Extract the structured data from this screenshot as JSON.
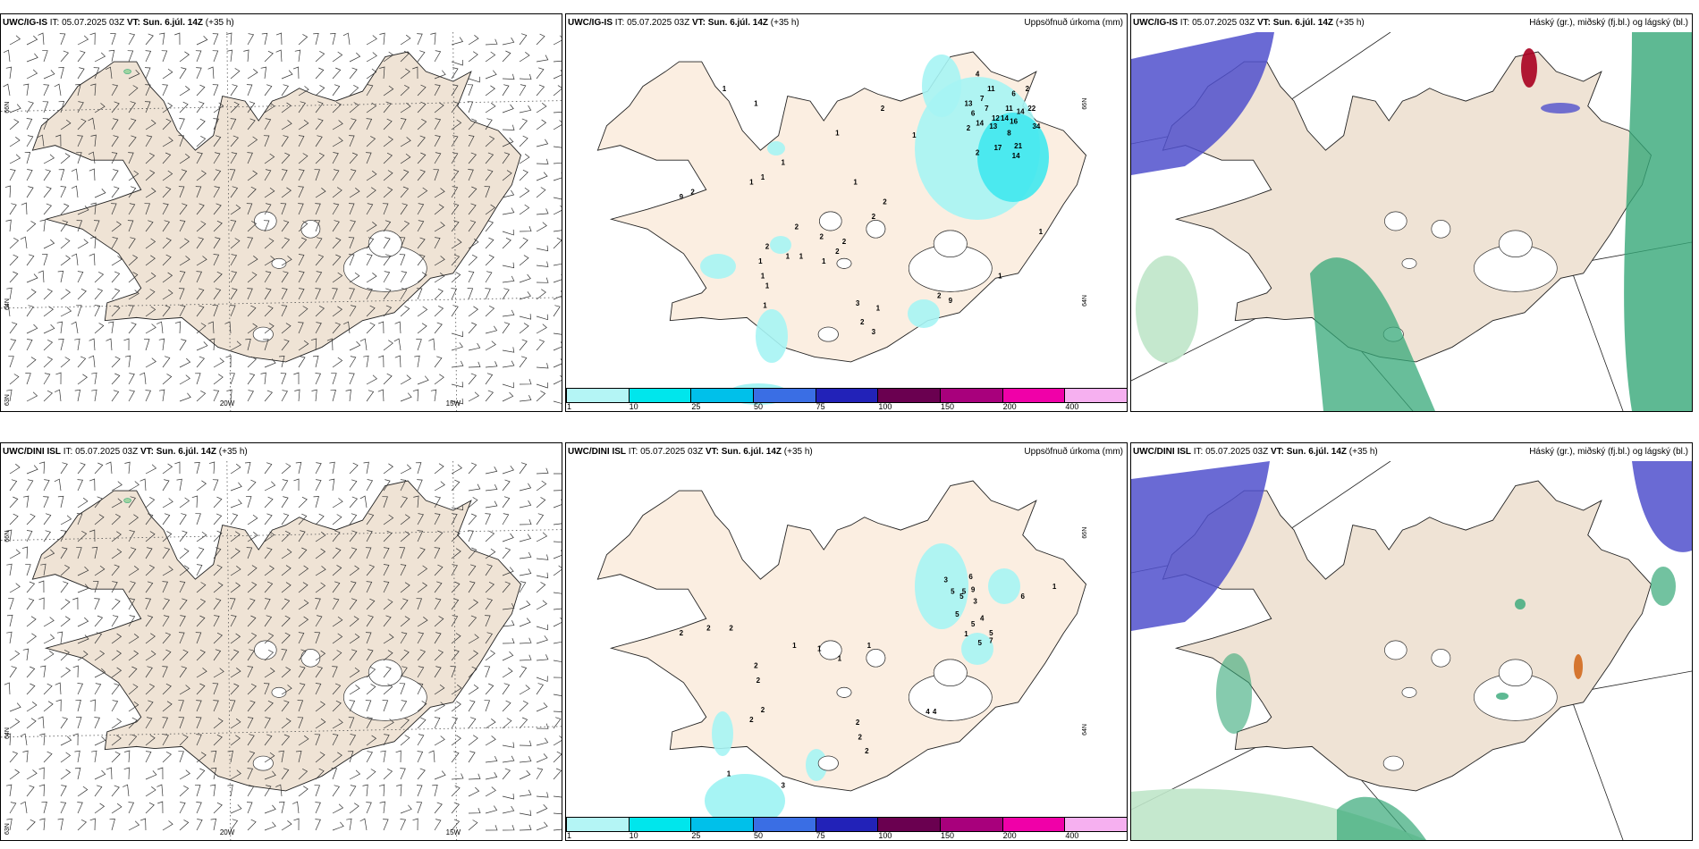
{
  "panels": [
    {
      "model": "UWC/IG-IS",
      "it_label": "IT:",
      "it": "05.07.2025 03Z",
      "vt_label": "VT:",
      "vt": "Sun. 6.júl. 14Z",
      "lead": "(+35 h)",
      "right_title": "",
      "kind": "wind"
    },
    {
      "model": "UWC/IG-IS",
      "it_label": "IT:",
      "it": "05.07.2025 03Z",
      "vt_label": "VT:",
      "vt": "Sun. 6.júl. 14Z",
      "lead": "(+35 h)",
      "right_title": "Uppsöfnuð úrkoma (mm)",
      "kind": "precip"
    },
    {
      "model": "UWC/IG-IS",
      "it_label": "IT:",
      "it": "05.07.2025 03Z",
      "vt_label": "VT:",
      "vt": "Sun. 6.júl. 14Z",
      "lead": "(+35 h)",
      "right_title": "Háský (gr.), miðský (fj.bl.) og lágský (bl.)",
      "kind": "cloud"
    },
    {
      "model": "UWC/DINI ISL",
      "it_label": "IT:",
      "it": "05.07.2025 03Z",
      "vt_label": "VT:",
      "vt": "Sun. 6.júl. 14Z",
      "lead": "(+35 h)",
      "right_title": "",
      "kind": "wind"
    },
    {
      "model": "UWC/DINI ISL",
      "it_label": "IT:",
      "it": "05.07.2025 03Z",
      "vt_label": "VT:",
      "vt": "Sun. 6.júl. 14Z",
      "lead": "(+35 h)",
      "right_title": "Uppsöfnuð úrkoma (mm)",
      "kind": "precip"
    },
    {
      "model": "UWC/DINI ISL",
      "it_label": "IT:",
      "it": "05.07.2025 03Z",
      "vt_label": "VT:",
      "vt": "Sun. 6.júl. 14Z",
      "lead": "(+35 h)",
      "right_title": "Háský (gr.), miðský (fj.bl.) og lágský (bl.)",
      "kind": "cloud"
    }
  ],
  "graticule": {
    "lon_labels": [
      "20W",
      "15W"
    ],
    "lat_labels": [
      "66N",
      "64N",
      "63N"
    ],
    "precip_lat_labels": [
      "66N",
      "64N"
    ]
  },
  "colorbar": {
    "ticks": [
      "1",
      "10",
      "25",
      "50",
      "75",
      "100",
      "150",
      "200",
      "400"
    ],
    "colors": [
      "#b4f5f5",
      "#00e6ec",
      "#00c0ea",
      "#3a6ee4",
      "#2222b8",
      "#6a0050",
      "#a8007c",
      "#f000a8",
      "#f6b0f0"
    ]
  },
  "colors": {
    "land_wind": "#efe3d5",
    "land_precip": "#fbeee1",
    "land_cloud": "#efe3d5",
    "precip_light": "#a6f4f4",
    "precip_mid": "#40e8ee",
    "high_cloud": "#36a878",
    "high_cloud_light": "#bfe6c9",
    "mid_cloud": "#5050cc",
    "low_cloud": "#a80020"
  },
  "precip_labels_ig": [
    {
      "t": "4",
      "lon": -15.9,
      "lat": 66.3
    },
    {
      "t": "11",
      "lon": -15.6,
      "lat": 66.15
    },
    {
      "t": "13",
      "lon": -16.1,
      "lat": 66.0
    },
    {
      "t": "7",
      "lon": -15.8,
      "lat": 66.05
    },
    {
      "t": "6",
      "lon": -15.1,
      "lat": 66.1
    },
    {
      "t": "2",
      "lon": -14.8,
      "lat": 66.15
    },
    {
      "t": "7",
      "lon": -15.7,
      "lat": 65.95
    },
    {
      "t": "11",
      "lon": -15.2,
      "lat": 65.95
    },
    {
      "t": "14",
      "lon": -14.95,
      "lat": 65.92
    },
    {
      "t": "22",
      "lon": -14.7,
      "lat": 65.95
    },
    {
      "t": "6",
      "lon": -16.0,
      "lat": 65.9
    },
    {
      "t": "12",
      "lon": -15.5,
      "lat": 65.85
    },
    {
      "t": "14",
      "lon": -15.3,
      "lat": 65.85
    },
    {
      "t": "16",
      "lon": -15.1,
      "lat": 65.82
    },
    {
      "t": "14",
      "lon": -15.85,
      "lat": 65.8
    },
    {
      "t": "13",
      "lon": -15.55,
      "lat": 65.77
    },
    {
      "t": "34",
      "lon": -14.6,
      "lat": 65.77
    },
    {
      "t": "2",
      "lon": -16.1,
      "lat": 65.75
    },
    {
      "t": "8",
      "lon": -15.2,
      "lat": 65.7
    },
    {
      "t": "21",
      "lon": -15.0,
      "lat": 65.57
    },
    {
      "t": "17",
      "lon": -15.45,
      "lat": 65.55
    },
    {
      "t": "2",
      "lon": -15.9,
      "lat": 65.5
    },
    {
      "t": "14",
      "lon": -15.05,
      "lat": 65.47
    },
    {
      "t": "2",
      "lon": -18.0,
      "lat": 65.95
    },
    {
      "t": "1",
      "lon": -21.5,
      "lat": 66.15
    },
    {
      "t": "1",
      "lon": -20.8,
      "lat": 66.0
    },
    {
      "t": "1",
      "lon": -19.0,
      "lat": 65.7
    },
    {
      "t": "1",
      "lon": -17.3,
      "lat": 65.68
    },
    {
      "t": "1",
      "lon": -20.2,
      "lat": 65.4
    },
    {
      "t": "1",
      "lon": -20.65,
      "lat": 65.25
    },
    {
      "t": "1",
      "lon": -20.9,
      "lat": 65.2
    },
    {
      "t": "2",
      "lon": -22.2,
      "lat": 65.1
    },
    {
      "t": "9",
      "lon": -22.45,
      "lat": 65.05
    },
    {
      "t": "1",
      "lon": -18.6,
      "lat": 65.2
    },
    {
      "t": "2",
      "lon": -17.95,
      "lat": 65.0
    },
    {
      "t": "2",
      "lon": -18.2,
      "lat": 64.85
    },
    {
      "t": "2",
      "lon": -19.9,
      "lat": 64.75
    },
    {
      "t": "2",
      "lon": -19.35,
      "lat": 64.65
    },
    {
      "t": "2",
      "lon": -18.85,
      "lat": 64.6
    },
    {
      "t": "2",
      "lon": -20.55,
      "lat": 64.55
    },
    {
      "t": "2",
      "lon": -19.0,
      "lat": 64.5
    },
    {
      "t": "1",
      "lon": -19.8,
      "lat": 64.45
    },
    {
      "t": "1",
      "lon": -19.3,
      "lat": 64.4
    },
    {
      "t": "1",
      "lon": -20.1,
      "lat": 64.45
    },
    {
      "t": "1",
      "lon": -20.7,
      "lat": 64.4
    },
    {
      "t": "1",
      "lon": -20.65,
      "lat": 64.25
    },
    {
      "t": "1",
      "lon": -20.55,
      "lat": 64.15
    },
    {
      "t": "1",
      "lon": -20.6,
      "lat": 63.95
    },
    {
      "t": "3",
      "lon": -18.55,
      "lat": 63.97
    },
    {
      "t": "1",
      "lon": -18.1,
      "lat": 63.92
    },
    {
      "t": "2",
      "lon": -18.45,
      "lat": 63.78
    },
    {
      "t": "3",
      "lon": -18.2,
      "lat": 63.68
    },
    {
      "t": "2",
      "lon": -16.75,
      "lat": 64.05
    },
    {
      "t": "9",
      "lon": -16.5,
      "lat": 64.0
    },
    {
      "t": "1",
      "lon": -15.4,
      "lat": 64.25
    },
    {
      "t": "1",
      "lon": -14.5,
      "lat": 64.7
    }
  ],
  "precip_labels_dini": [
    {
      "t": "3",
      "lon": -16.6,
      "lat": 65.52
    },
    {
      "t": "6",
      "lon": -16.05,
      "lat": 65.55
    },
    {
      "t": "5",
      "lon": -16.45,
      "lat": 65.4
    },
    {
      "t": "5",
      "lon": -16.2,
      "lat": 65.4
    },
    {
      "t": "9",
      "lon": -16.0,
      "lat": 65.42
    },
    {
      "t": "5",
      "lon": -16.25,
      "lat": 65.35
    },
    {
      "t": "3",
      "lon": -15.95,
      "lat": 65.3
    },
    {
      "t": "6",
      "lon": -14.9,
      "lat": 65.35
    },
    {
      "t": "5",
      "lon": -16.35,
      "lat": 65.17
    },
    {
      "t": "4",
      "lon": -15.8,
      "lat": 65.13
    },
    {
      "t": "5",
      "lon": -16.0,
      "lat": 65.07
    },
    {
      "t": "5",
      "lon": -15.6,
      "lat": 64.98
    },
    {
      "t": "7",
      "lon": -15.6,
      "lat": 64.9
    },
    {
      "t": "1",
      "lon": -16.15,
      "lat": 64.97
    },
    {
      "t": "5",
      "lon": -15.85,
      "lat": 64.88
    },
    {
      "t": "1",
      "lon": -14.2,
      "lat": 65.45
    },
    {
      "t": "2",
      "lon": -21.85,
      "lat": 65.03
    },
    {
      "t": "2",
      "lon": -21.35,
      "lat": 65.03
    },
    {
      "t": "1",
      "lon": -19.95,
      "lat": 64.85
    },
    {
      "t": "1",
      "lon": -19.4,
      "lat": 64.82
    },
    {
      "t": "1",
      "lon": -18.95,
      "lat": 64.72
    },
    {
      "t": "1",
      "lon": -18.3,
      "lat": 64.85
    },
    {
      "t": "2",
      "lon": -22.45,
      "lat": 64.98
    },
    {
      "t": "2",
      "lon": -20.8,
      "lat": 64.65
    },
    {
      "t": "2",
      "lon": -20.75,
      "lat": 64.5
    },
    {
      "t": "2",
      "lon": -20.9,
      "lat": 64.1
    },
    {
      "t": "2",
      "lon": -20.65,
      "lat": 64.2
    },
    {
      "t": "4",
      "lon": -17.0,
      "lat": 64.18
    },
    {
      "t": "4",
      "lon": -16.85,
      "lat": 64.18
    },
    {
      "t": "2",
      "lon": -18.55,
      "lat": 64.07
    },
    {
      "t": "2",
      "lon": -18.5,
      "lat": 63.92
    },
    {
      "t": "2",
      "lon": -18.35,
      "lat": 63.78
    },
    {
      "t": "1",
      "lon": -21.4,
      "lat": 63.55
    },
    {
      "t": "3",
      "lon": -20.2,
      "lat": 63.43
    }
  ]
}
